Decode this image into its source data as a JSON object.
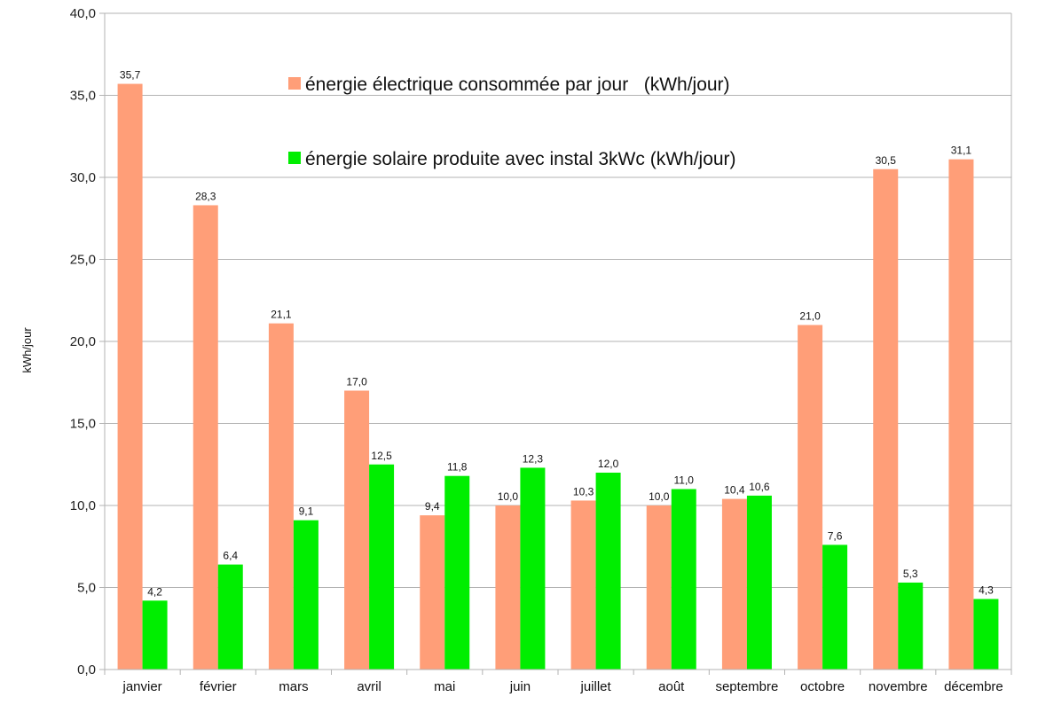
{
  "chart_data": {
    "type": "bar",
    "categories": [
      "janvier",
      "février",
      "mars",
      "avril",
      "mai",
      "juin",
      "juillet",
      "août",
      "septembre",
      "octobre",
      "novembre",
      "décembre"
    ],
    "series": [
      {
        "name": "énergie électrique consommée par jour   (kWh/jour)",
        "color": "#ff9e78",
        "values": [
          35.7,
          28.3,
          21.1,
          17.0,
          9.4,
          10.0,
          10.3,
          10.0,
          10.4,
          21.0,
          30.5,
          31.1
        ],
        "labels": [
          "35,7",
          "28,3",
          "21,1",
          "17,0",
          "9,4",
          "10,0",
          "10,3",
          "10,0",
          "10,4",
          "21,0",
          "30,5",
          "31,1"
        ]
      },
      {
        "name": "énergie solaire produite avec instal 3kWc (kWh/jour)",
        "color": "#00ee00",
        "values": [
          4.2,
          6.4,
          9.1,
          12.5,
          11.8,
          12.3,
          12.0,
          11.0,
          10.6,
          7.6,
          5.3,
          4.3
        ],
        "labels": [
          "4,2",
          "6,4",
          "9,1",
          "12,5",
          "11,8",
          "12,3",
          "12,0",
          "11,0",
          "10,6",
          "7,6",
          "5,3",
          "4,3"
        ]
      }
    ],
    "title": "",
    "xlabel": "",
    "ylabel": "kWh/jour",
    "ylim": [
      0,
      40
    ],
    "yticks": [
      0,
      5,
      10,
      15,
      20,
      25,
      30,
      35,
      40
    ],
    "ytick_labels": [
      "0,0",
      "5,0",
      "10,0",
      "15,0",
      "20,0",
      "25,0",
      "30,0",
      "35,0",
      "40,0"
    ],
    "grid": true,
    "legend_position": "top-center"
  }
}
